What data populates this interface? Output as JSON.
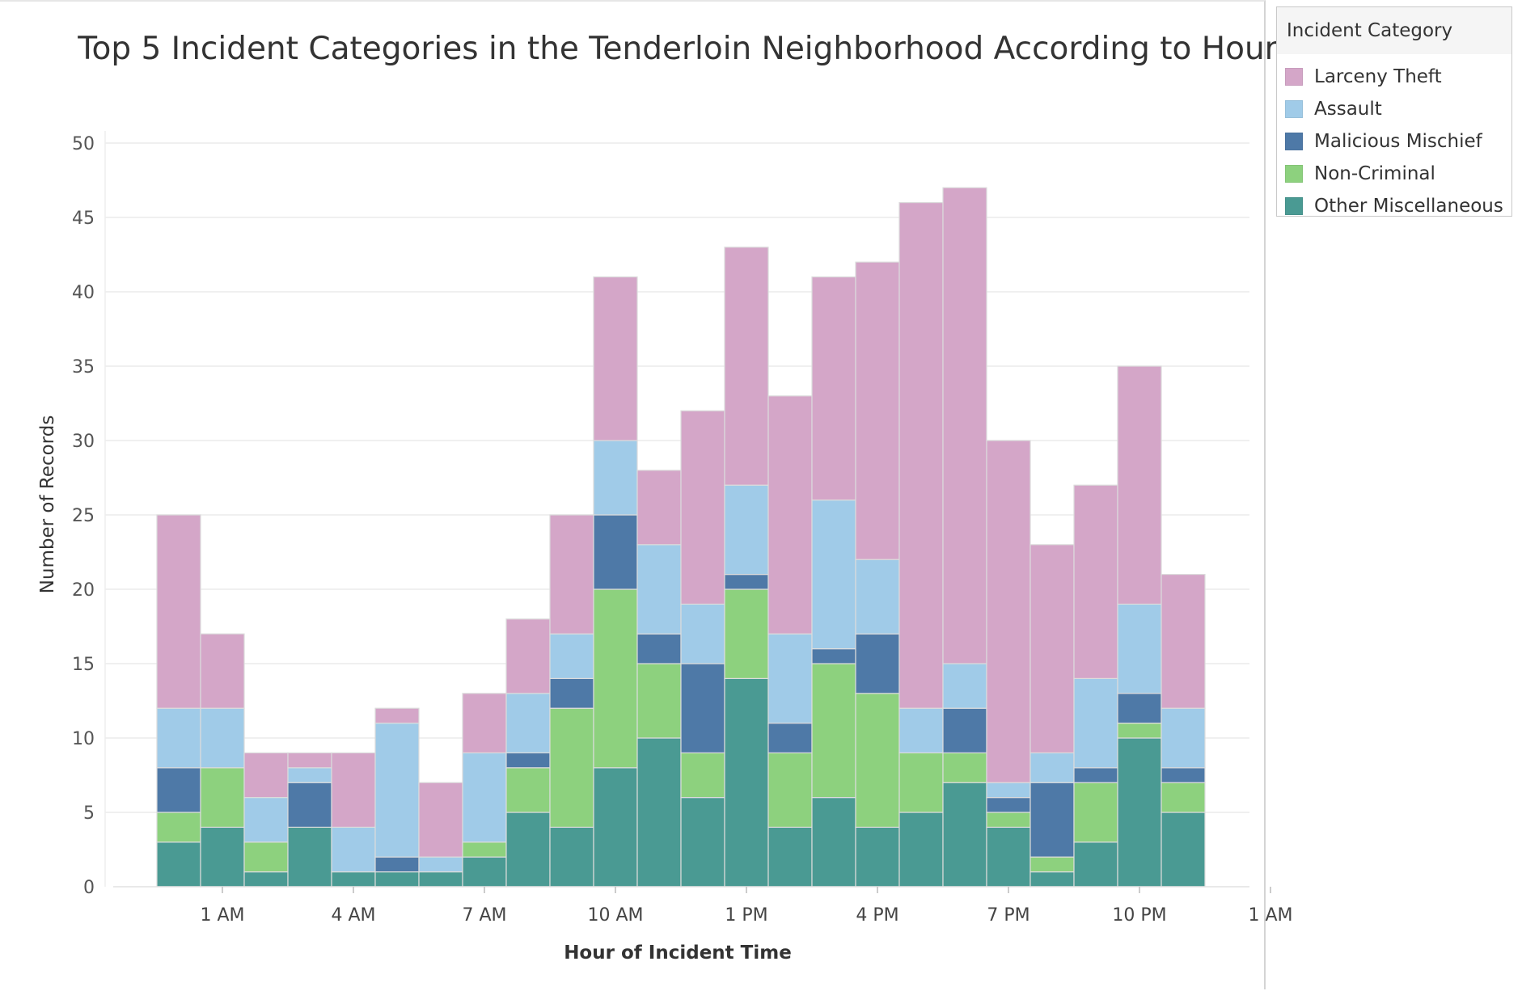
{
  "chart_data": {
    "type": "bar",
    "stacked": true,
    "title": "Top 5 Incident Categories in the Tenderloin Neighborhood According to Hour",
    "xlabel": "Hour of Incident Time",
    "ylabel": "Number of Records",
    "ylim": [
      0,
      50
    ],
    "yticks": [
      0,
      5,
      10,
      15,
      20,
      25,
      30,
      35,
      40,
      45,
      50
    ],
    "xticks": [
      "1 AM",
      "4 AM",
      "7 AM",
      "10 AM",
      "1 PM",
      "4 PM",
      "7 PM",
      "10 PM",
      "1 AM"
    ],
    "grid": true,
    "legend_position": "right",
    "categories": [
      "12 AM",
      "1 AM",
      "2 AM",
      "3 AM",
      "4 AM",
      "5 AM",
      "6 AM",
      "7 AM",
      "8 AM",
      "9 AM",
      "10 AM",
      "11 AM",
      "12 PM",
      "1 PM",
      "2 PM",
      "3 PM",
      "4 PM",
      "5 PM",
      "6 PM",
      "7 PM",
      "8 PM",
      "9 PM",
      "10 PM",
      "11 PM"
    ],
    "series": [
      {
        "name": "Other Miscellaneous",
        "color": "#4a9a93",
        "values": [
          3,
          4,
          1,
          4,
          1,
          1,
          1,
          2,
          5,
          4,
          8,
          10,
          6,
          14,
          4,
          6,
          4,
          5,
          7,
          4,
          1,
          3,
          10,
          5
        ]
      },
      {
        "name": "Non-Criminal",
        "color": "#8dd17e",
        "values": [
          2,
          4,
          2,
          0,
          0,
          0,
          0,
          1,
          3,
          8,
          12,
          5,
          3,
          6,
          5,
          9,
          9,
          4,
          2,
          1,
          1,
          4,
          1,
          2
        ]
      },
      {
        "name": "Malicious Mischief",
        "color": "#4e79a7",
        "values": [
          3,
          0,
          0,
          3,
          0,
          1,
          0,
          0,
          1,
          2,
          5,
          2,
          6,
          1,
          2,
          1,
          4,
          0,
          3,
          1,
          5,
          1,
          2,
          1
        ]
      },
      {
        "name": "Assault",
        "color": "#a0cbe8",
        "values": [
          4,
          4,
          3,
          1,
          3,
          9,
          1,
          6,
          4,
          3,
          5,
          6,
          4,
          6,
          6,
          10,
          5,
          3,
          3,
          1,
          2,
          6,
          6,
          4
        ]
      },
      {
        "name": "Larceny Theft",
        "color": "#d4a6c8",
        "values": [
          13,
          5,
          3,
          1,
          5,
          1,
          5,
          4,
          5,
          8,
          11,
          5,
          13,
          16,
          16,
          15,
          20,
          34,
          32,
          23,
          14,
          13,
          16,
          9
        ]
      }
    ]
  },
  "legend": {
    "title": "Incident Category",
    "items": [
      {
        "label": "Larceny Theft",
        "color": "#d4a6c8"
      },
      {
        "label": "Assault",
        "color": "#a0cbe8"
      },
      {
        "label": "Malicious Mischief",
        "color": "#4e79a7"
      },
      {
        "label": "Non-Criminal",
        "color": "#8dd17e"
      },
      {
        "label": "Other Miscellaneous",
        "color": "#4a9a93"
      }
    ]
  }
}
